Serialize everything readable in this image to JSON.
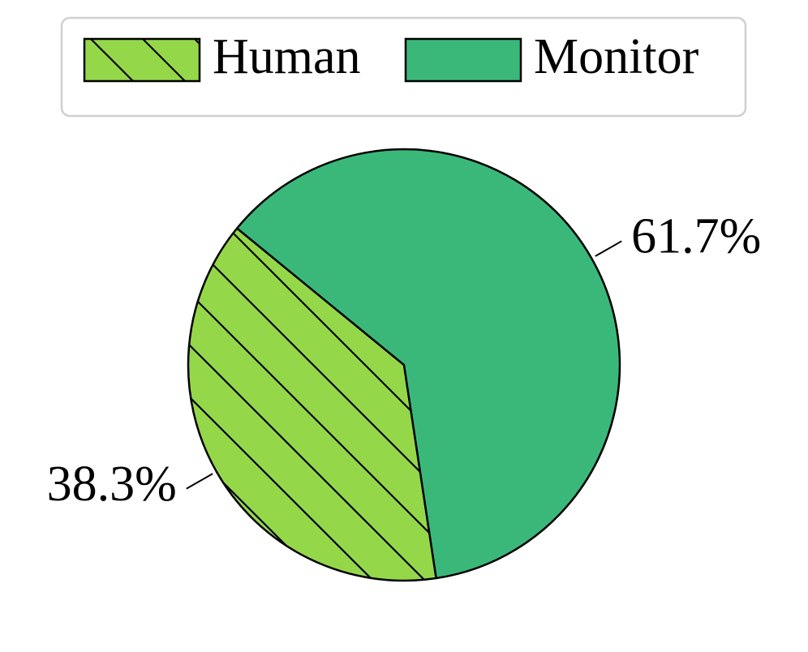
{
  "chart_data": {
    "type": "pie",
    "categories": [
      "Human",
      "Monitor"
    ],
    "values": [
      38.3,
      61.7
    ],
    "value_labels": [
      "38.3%",
      "61.7%"
    ],
    "colors": [
      "#94d84a",
      "#3ab87a"
    ],
    "hatched": [
      true,
      false
    ],
    "legend": "top"
  }
}
